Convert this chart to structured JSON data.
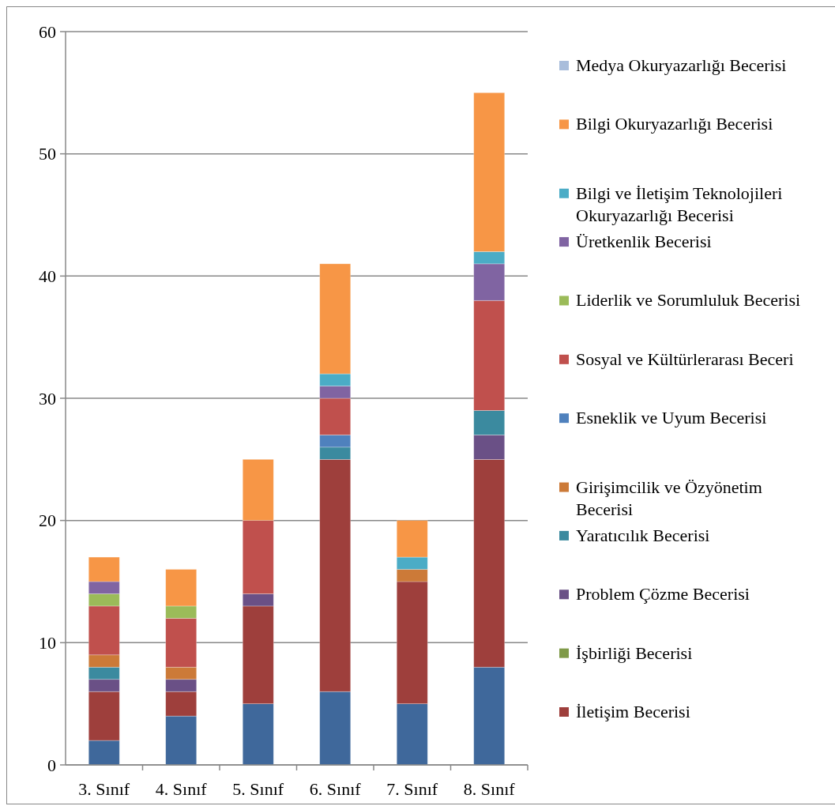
{
  "chart_data": {
    "type": "bar",
    "stacked": true,
    "categories": [
      "3. Sınıf",
      "4. Sınıf",
      "5. Sınıf",
      "6. Sınıf",
      "7. Sınıf",
      "8. Sınıf"
    ],
    "ylim": [
      0,
      60
    ],
    "yticks": [
      0,
      10,
      20,
      30,
      40,
      50,
      60
    ],
    "grid": "y",
    "legend": "right",
    "series": [
      {
        "color": "#3f689b",
        "values": [
          2,
          4,
          5,
          6,
          5,
          8
        ]
      },
      {
        "name": "İletişim Becerisi",
        "color": "#9e3f3c",
        "values": [
          4,
          2,
          8,
          19,
          10,
          17
        ]
      },
      {
        "name": "İşbirliği Becerisi",
        "color": "#7f9a48",
        "values": [
          0,
          0,
          0,
          0,
          0,
          0
        ]
      },
      {
        "name": "Problem Çözme Becerisi",
        "color": "#6a5086",
        "values": [
          1,
          1,
          1,
          0,
          0,
          2
        ]
      },
      {
        "name": "Yaratıcılık Becerisi",
        "color": "#3b8a9f",
        "values": [
          1,
          0,
          0,
          1,
          0,
          2
        ]
      },
      {
        "name": "Girişimcilik ve Özyönetim Becerisi",
        "color": "#cc7a38",
        "values": [
          1,
          1,
          0,
          0,
          1,
          0
        ]
      },
      {
        "name": "Esneklik ve Uyum Becerisi",
        "color": "#4f81bd",
        "values": [
          0,
          0,
          0,
          1,
          0,
          0
        ]
      },
      {
        "name": "Sosyal ve Kültürlerarası Beceri",
        "color": "#c0504d",
        "values": [
          4,
          4,
          6,
          3,
          0,
          9
        ]
      },
      {
        "name": "Liderlik ve Sorumluluk Becerisi",
        "color": "#9bbb59",
        "values": [
          1,
          1,
          0,
          0,
          0,
          0
        ]
      },
      {
        "name": "Üretkenlik Becerisi",
        "color": "#8064a2",
        "values": [
          1,
          0,
          0,
          1,
          0,
          3
        ]
      },
      {
        "name": "Bilgi ve İletişim Teknolojileri Okuryazarlığı Becerisi",
        "color": "#4bacc6",
        "values": [
          0,
          0,
          0,
          1,
          1,
          1
        ]
      },
      {
        "name": "Bilgi Okuryazarlığı Becerisi",
        "color": "#f79646",
        "values": [
          2,
          3,
          5,
          9,
          3,
          13
        ]
      },
      {
        "name": "Medya Okuryazarlığı Becerisi",
        "color": "#a9bddb",
        "values": [
          0,
          0,
          0,
          0,
          0,
          0
        ]
      }
    ]
  }
}
